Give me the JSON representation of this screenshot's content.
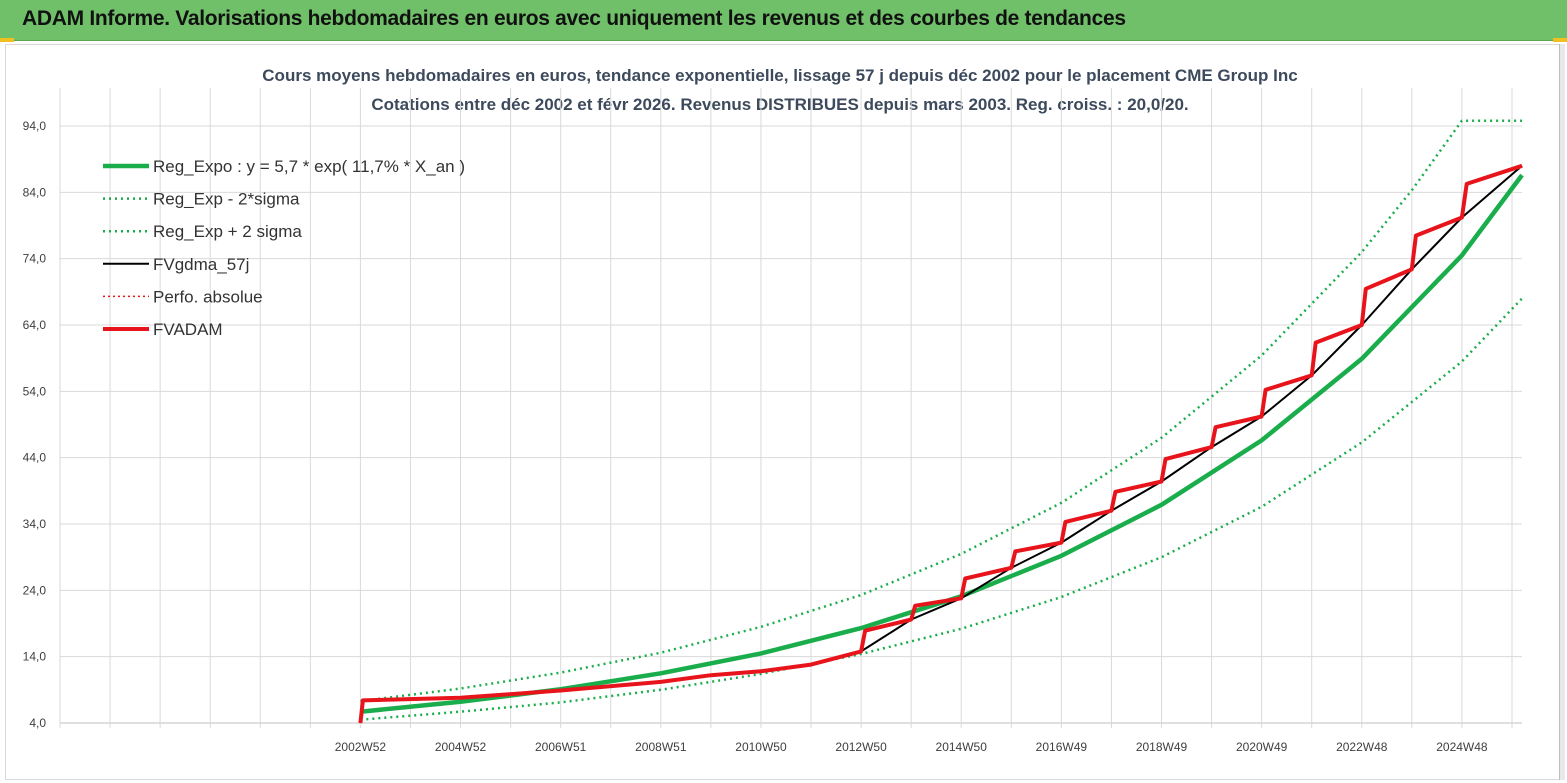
{
  "header": {
    "title": "ADAM Informe. Valorisations hebdomadaires en euros avec uniquement les revenus et des courbes de tendances"
  },
  "colors": {
    "header_bg": "#70c069",
    "trend": "#1aad4b",
    "actual": "#e8141c",
    "smooth": "#000000"
  },
  "chart_data": {
    "type": "line",
    "title_line1": "Cours moyens hebdomadaires en euros, tendance exponentielle, lissage 57 j depuis déc 2002 pour le placement CME Group Inc",
    "title_line2": "Cotations entre déc 2002 et févr 2026. Revenus DISTRIBUES depuis mars 2003. Reg. croiss. : 20,0/20.",
    "xlabel": "",
    "ylabel": "",
    "ylim": [
      4.0,
      94.0
    ],
    "y_ticks": [
      "4,0",
      "14,0",
      "24,0",
      "34,0",
      "44,0",
      "54,0",
      "64,0",
      "74,0",
      "84,0",
      "94,0"
    ],
    "x_ticks": [
      "2002W52",
      "2004W52",
      "2006W51",
      "2008W51",
      "2010W50",
      "2012W50",
      "2014W50",
      "2016W49",
      "2018W49",
      "2020W49",
      "2022W48",
      "2024W48"
    ],
    "x_range_years": [
      1996.0,
      2025.2
    ],
    "grid": true,
    "legend_position": "top-left",
    "legend": [
      {
        "label": "Reg_Expo : y = 5,7 * exp( 11,7% *  X_an )",
        "style": "solid-thick",
        "color": "#1aad4b"
      },
      {
        "label": "Reg_Exp - 2*sigma",
        "style": "dotted",
        "color": "#1aad4b"
      },
      {
        "label": "Reg_Exp + 2 sigma",
        "style": "dotted",
        "color": "#1aad4b"
      },
      {
        "label": "FVgdma_57j",
        "style": "solid",
        "color": "#000000"
      },
      {
        "label": "Perfo. absolue",
        "style": "dotted",
        "color": "#e8141c"
      },
      {
        "label": "FVADAM",
        "style": "solid-thick",
        "color": "#e8141c"
      }
    ],
    "series": [
      {
        "name": "Reg_Expo : y = 5,7 * exp( 11,7% *  X_an )",
        "x": [
          2002.0,
          2004.0,
          2006.0,
          2008.0,
          2010.0,
          2012.0,
          2014.0,
          2016.0,
          2018.0,
          2020.0,
          2022.0,
          2024.0,
          2025.2
        ],
        "y": [
          5.7,
          7.2,
          9.1,
          11.5,
          14.5,
          18.3,
          23.1,
          29.2,
          36.9,
          46.6,
          58.9,
          74.5,
          86.6
        ]
      },
      {
        "name": "Reg_Exp - 2*sigma",
        "x": [
          2002.0,
          2004.0,
          2006.0,
          2008.0,
          2010.0,
          2012.0,
          2014.0,
          2016.0,
          2018.0,
          2020.0,
          2022.0,
          2024.0,
          2025.2
        ],
        "y": [
          4.5,
          5.7,
          7.1,
          9.0,
          11.4,
          14.4,
          18.2,
          23.0,
          29.0,
          36.6,
          46.3,
          58.5,
          68.0
        ]
      },
      {
        "name": "Reg_Exp + 2 sigma",
        "x": [
          2002.0,
          2004.0,
          2006.0,
          2008.0,
          2010.0,
          2012.0,
          2014.0,
          2016.0,
          2018.0,
          2020.0,
          2022.0,
          2023.0,
          2024.0,
          2025.2
        ],
        "y": [
          7.3,
          9.2,
          11.6,
          14.6,
          18.5,
          23.3,
          29.5,
          37.2,
          47.0,
          59.4,
          75.0,
          84.3,
          94.8,
          94.8
        ]
      },
      {
        "name": "FVgdma_57j",
        "x": [
          2002.0,
          2002.05,
          2004.0,
          2006.0,
          2008.0,
          2009.0,
          2010.0,
          2011.0,
          2012.0,
          2013.0,
          2014.0,
          2015.0,
          2016.0,
          2017.0,
          2018.0,
          2019.0,
          2020.0,
          2021.0,
          2022.0,
          2023.0,
          2024.0,
          2025.2
        ],
        "y": [
          4.0,
          7.4,
          7.8,
          8.9,
          10.2,
          11.2,
          11.8,
          12.8,
          14.8,
          19.6,
          22.8,
          27.4,
          31.2,
          36.0,
          40.4,
          45.6,
          50.2,
          56.4,
          64.0,
          72.4,
          80.2,
          88.0
        ]
      },
      {
        "name": "Perfo. absolue",
        "x": [
          2002.0,
          2002.05,
          2004.0,
          2006.0,
          2008.0,
          2009.0,
          2010.0,
          2011.0,
          2012.0,
          2013.0,
          2014.0,
          2015.0,
          2016.0,
          2017.0,
          2018.0,
          2019.0,
          2020.0,
          2021.0,
          2022.0,
          2023.0,
          2024.0,
          2025.2
        ],
        "y": [
          4.0,
          7.4,
          7.8,
          8.9,
          10.2,
          11.2,
          11.8,
          12.8,
          14.8,
          19.6,
          22.8,
          27.4,
          31.2,
          36.0,
          40.4,
          45.6,
          50.2,
          56.4,
          64.0,
          72.4,
          80.2,
          88.0
        ]
      },
      {
        "name": "FVADAM",
        "x": [
          2002.0,
          2002.05,
          2004.0,
          2006.0,
          2008.0,
          2009.0,
          2010.0,
          2011.0,
          2012.0,
          2013.0,
          2014.0,
          2015.0,
          2016.0,
          2017.0,
          2018.0,
          2019.0,
          2020.0,
          2021.0,
          2022.0,
          2023.0,
          2024.0,
          2025.2
        ],
        "y": [
          4.0,
          7.4,
          7.8,
          8.9,
          10.2,
          11.2,
          11.8,
          12.8,
          14.8,
          19.6,
          22.8,
          27.4,
          31.2,
          36.0,
          40.4,
          45.6,
          50.2,
          56.4,
          64.0,
          72.4,
          80.2,
          88.0
        ]
      }
    ]
  }
}
